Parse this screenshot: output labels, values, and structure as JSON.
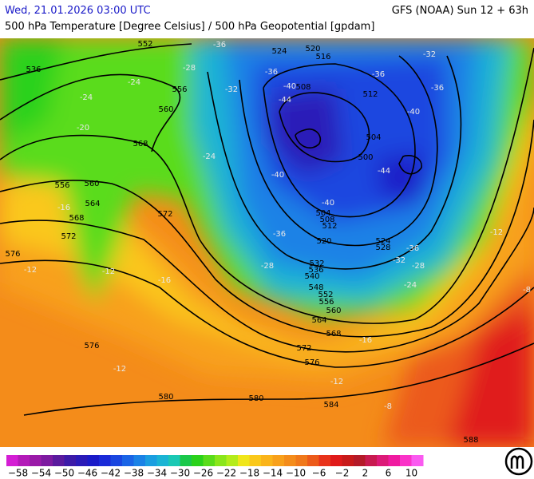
{
  "header": {
    "datetime": "Wed, 21.01.2026 03:00 UTC",
    "model": "GFS (NOAA) Sun 12 + 63h",
    "subtitle": "500 hPa Temperature [Degree Celsius] / 500 hPa Geopotential [gpdam]"
  },
  "map": {
    "height_labels": [
      "536",
      "552",
      "556",
      "560",
      "568",
      "556",
      "560",
      "564",
      "568",
      "572",
      "572",
      "576",
      "576",
      "580",
      "580",
      "584",
      "588",
      "572",
      "576",
      "568",
      "564",
      "560",
      "556",
      "552",
      "548",
      "540",
      "536",
      "532",
      "520",
      "512",
      "508",
      "504",
      "500",
      "504",
      "508",
      "512",
      "516",
      "520",
      "524",
      "528",
      "524"
    ],
    "temperature_labels": [
      "-36",
      "-28",
      "-24",
      "-24",
      "-20",
      "-32",
      "-36",
      "-40",
      "-44",
      "-40",
      "-44",
      "-40",
      "-40",
      "-36",
      "-32",
      "-28",
      "-24",
      "-36",
      "-28",
      "-36",
      "-36",
      "-32",
      "-16",
      "-12",
      "-12",
      "-16",
      "-8",
      "-12",
      "-12",
      "-12",
      "-16",
      "-8",
      "-24"
    ]
  },
  "colorbar": {
    "labels": [
      "−58",
      "−54",
      "−50",
      "−46",
      "−42",
      "−38",
      "−34",
      "−30",
      "−26",
      "−22",
      "−18",
      "−14",
      "−10",
      "−6",
      "−2",
      "2",
      "6",
      "10"
    ],
    "colors": [
      "#d41ed4",
      "#b31ab8",
      "#9a1aa8",
      "#7d1aa0",
      "#5a1a9e",
      "#3c1aa8",
      "#2a1ab8",
      "#1a1ac8",
      "#1a2ad8",
      "#1a46e0",
      "#1a64e6",
      "#1a82e6",
      "#1a9ee0",
      "#1ab4d4",
      "#1ac8b4",
      "#1ac84a",
      "#2ad21a",
      "#5adc1a",
      "#8ae61a",
      "#b4ec1a",
      "#f0e61a",
      "#fac81a",
      "#fab41a",
      "#f8a01a",
      "#f48c1a",
      "#f0781a",
      "#ec5a1a",
      "#e8321a",
      "#e01a1a",
      "#c81a1a",
      "#b41a28",
      "#c81a50",
      "#dc1a78",
      "#f01aa0",
      "#fa32c8",
      "#fa5af0"
    ]
  }
}
